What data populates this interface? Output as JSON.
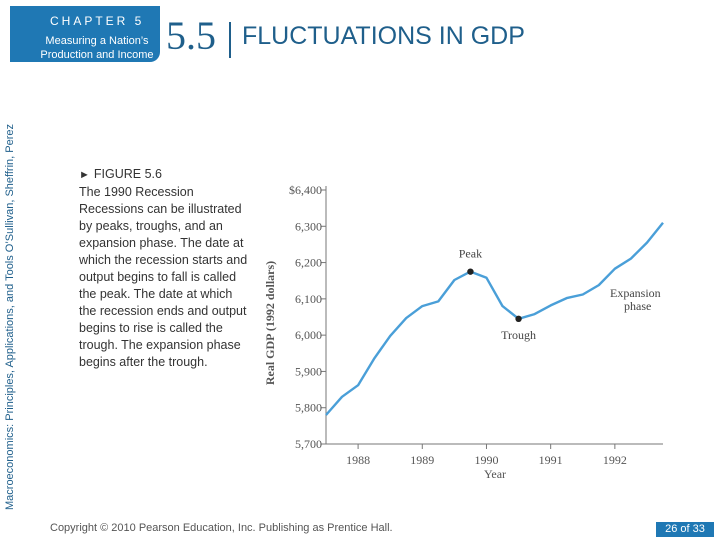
{
  "header": {
    "chapter_label": "CHAPTER 5",
    "chapter_subtitle": "Measuring a Nation’s Production and Income",
    "section_number": "5.5",
    "section_title": "FLUCTUATIONS IN GDP"
  },
  "sidebar": {
    "text": "Macroeconomics: Principles, Applications, and Tools     O’Sullivan, Sheffrin, Perez"
  },
  "caption": {
    "figure_label": "FIGURE 5.6",
    "figure_title": "The 1990 Recession",
    "body": "Recessions can be illustrated by peaks, troughs, and an expansion phase. The date at which the recession starts and output begins to fall is called the peak. The date at which the recession ends and output begins to rise is called the trough. The expansion phase begins after the trough."
  },
  "footer": {
    "copyright": "Copyright © 2010  Pearson Education, Inc. Publishing as Prentice Hall.",
    "page": "26 of 33"
  },
  "colors": {
    "accent": "#1f78b4",
    "line": "#4a9fd8",
    "text_dark": "#333333"
  },
  "chart_data": {
    "type": "line",
    "title": "",
    "xlabel": "Year",
    "ylabel": "Real GDP (1992 dollars)",
    "x_ticks": [
      "1988",
      "1989",
      "1990",
      "1991",
      "1992"
    ],
    "y_ticks": [
      "5,700",
      "5,800",
      "5,900",
      "6,000",
      "6,100",
      "6,200",
      "6,300",
      "$6,400"
    ],
    "xlim": [
      1987.5,
      1992.75
    ],
    "ylim": [
      5700,
      6400
    ],
    "grid": false,
    "series": [
      {
        "name": "",
        "x": [
          1987.5,
          1987.75,
          1988.0,
          1988.25,
          1988.5,
          1988.75,
          1989.0,
          1989.25,
          1989.5,
          1989.75,
          1990.0,
          1990.25,
          1990.5,
          1990.75,
          1991.0,
          1991.25,
          1991.5,
          1991.75,
          1992.0,
          1992.25,
          1992.5,
          1992.75
        ],
        "values": [
          5780,
          5830,
          5862,
          5935,
          5998,
          6047,
          6080,
          6093,
          6152,
          6175,
          6158,
          6080,
          6045,
          6058,
          6082,
          6102,
          6112,
          6138,
          6183,
          6211,
          6255,
          6310
        ]
      }
    ],
    "points": [
      {
        "label": "Peak",
        "x": 1989.75,
        "y": 6175
      },
      {
        "label": "Trough",
        "x": 1990.5,
        "y": 6045
      }
    ],
    "annotations": [
      {
        "text": "Peak"
      },
      {
        "text": "Trough"
      },
      {
        "text": "Expansion"
      },
      {
        "text": "phase"
      }
    ]
  }
}
